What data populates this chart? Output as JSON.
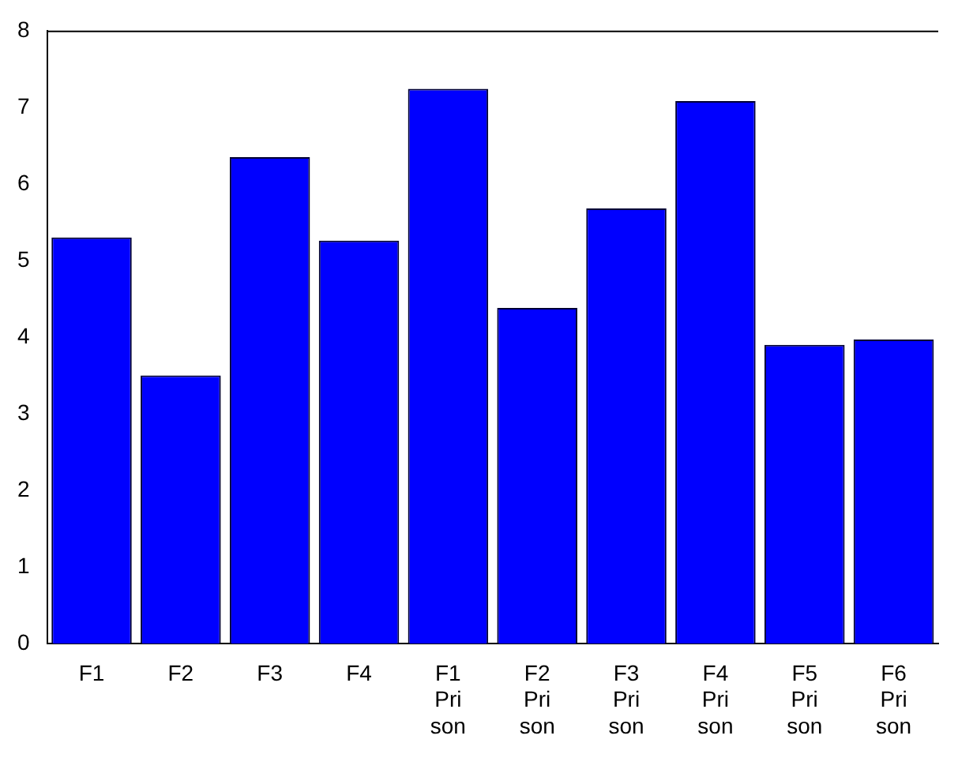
{
  "chart_data": {
    "type": "bar",
    "categories": [
      "F1",
      "F2",
      "F3",
      "F4",
      "F1\nPri\nson",
      "F2\nPri\nson",
      "F3\nPri\nson",
      "F4\nPri\nson",
      "F5\nPri\nson",
      "F6\nPri\nson"
    ],
    "values": [
      5.3,
      3.5,
      6.35,
      5.26,
      7.24,
      4.38,
      5.68,
      7.08,
      3.9,
      3.97
    ],
    "color": "#0000ff",
    "ylim": [
      0,
      8
    ],
    "yticks": [
      0,
      1,
      2,
      3,
      4,
      5,
      6,
      7,
      8
    ],
    "grid": false,
    "legend": false
  }
}
